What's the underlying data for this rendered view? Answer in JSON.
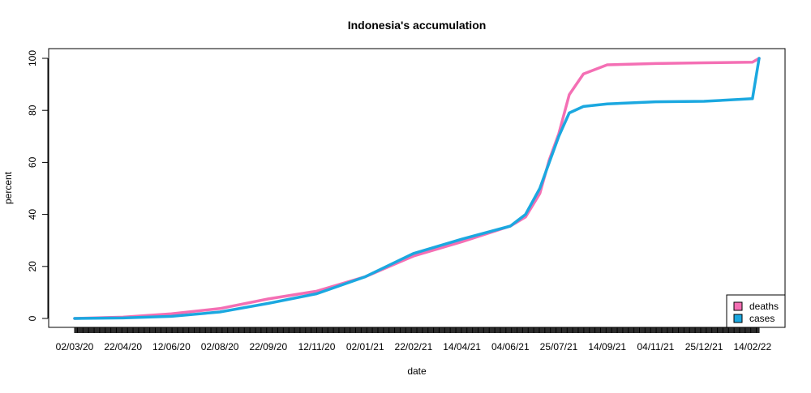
{
  "chart_data": {
    "type": "line",
    "title": "Indonesia's accumulation",
    "xlabel": "date",
    "ylabel": "percent",
    "ylim": [
      0,
      100
    ],
    "y_ticks": [
      "0",
      "20",
      "40",
      "60",
      "80",
      "100"
    ],
    "x_tick_labels": [
      "02/03/20",
      "22/04/20",
      "12/06/20",
      "02/08/20",
      "22/09/20",
      "12/11/20",
      "02/01/21",
      "22/02/21",
      "14/04/21",
      "04/06/21",
      "25/07/21",
      "14/09/21",
      "04/11/21",
      "25/12/21",
      "14/02/22"
    ],
    "grid": false,
    "legend_position": "bottom-right",
    "x": [
      "02/03/20",
      "22/04/20",
      "12/06/20",
      "02/08/20",
      "22/09/20",
      "12/11/20",
      "02/01/21",
      "22/02/21",
      "14/04/21",
      "04/06/21",
      "20/06/21",
      "05/07/21",
      "15/07/21",
      "25/07/21",
      "05/08/21",
      "20/08/21",
      "14/09/21",
      "04/11/21",
      "25/12/21",
      "14/02/22",
      "21/02/22"
    ],
    "series": [
      {
        "name": "deaths",
        "color": "#f46fb4",
        "values": [
          0,
          0.5,
          1.8,
          3.8,
          7.5,
          10.5,
          16,
          24,
          29.5,
          35.5,
          39,
          48,
          61,
          71,
          86,
          94,
          97.5,
          98,
          98.3,
          98.5,
          100
        ]
      },
      {
        "name": "cases",
        "color": "#1ba8e0",
        "values": [
          0,
          0.2,
          0.8,
          2.5,
          5.8,
          9.5,
          16,
          25,
          30.5,
          35.5,
          40,
          50,
          60,
          70,
          79,
          81.5,
          82.5,
          83.3,
          83.5,
          84.5,
          100
        ]
      }
    ]
  }
}
